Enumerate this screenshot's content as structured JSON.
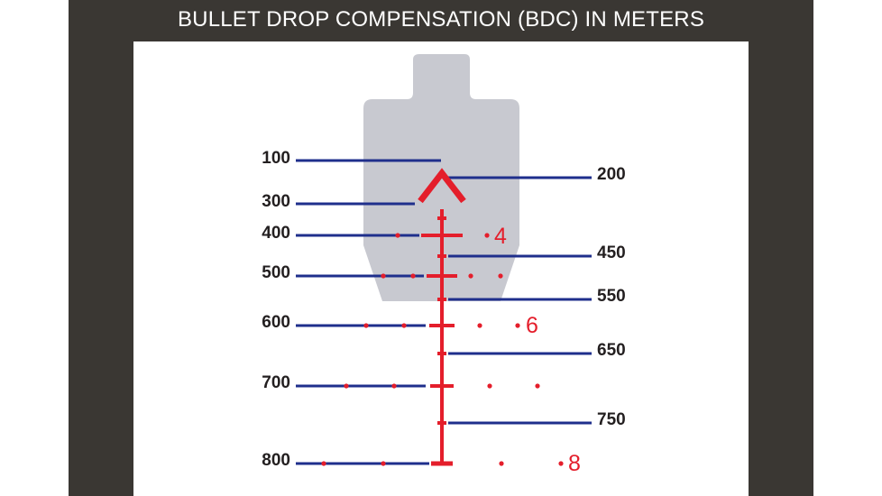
{
  "title": "BULLET DROP COMPENSATION (BDC) IN METERS",
  "colors": {
    "frame": "#3a3733",
    "panel": "#ffffff",
    "target": "#c8c9d0",
    "reticle": "#e41e2b",
    "line": "#1f2f8c",
    "label": "#231f20"
  },
  "ranges_left": [
    "100",
    "300",
    "400",
    "500",
    "600",
    "700",
    "800"
  ],
  "ranges_right": [
    "200",
    "450",
    "550",
    "650",
    "750"
  ],
  "wind_numbers": [
    "4",
    "6",
    "8"
  ]
}
